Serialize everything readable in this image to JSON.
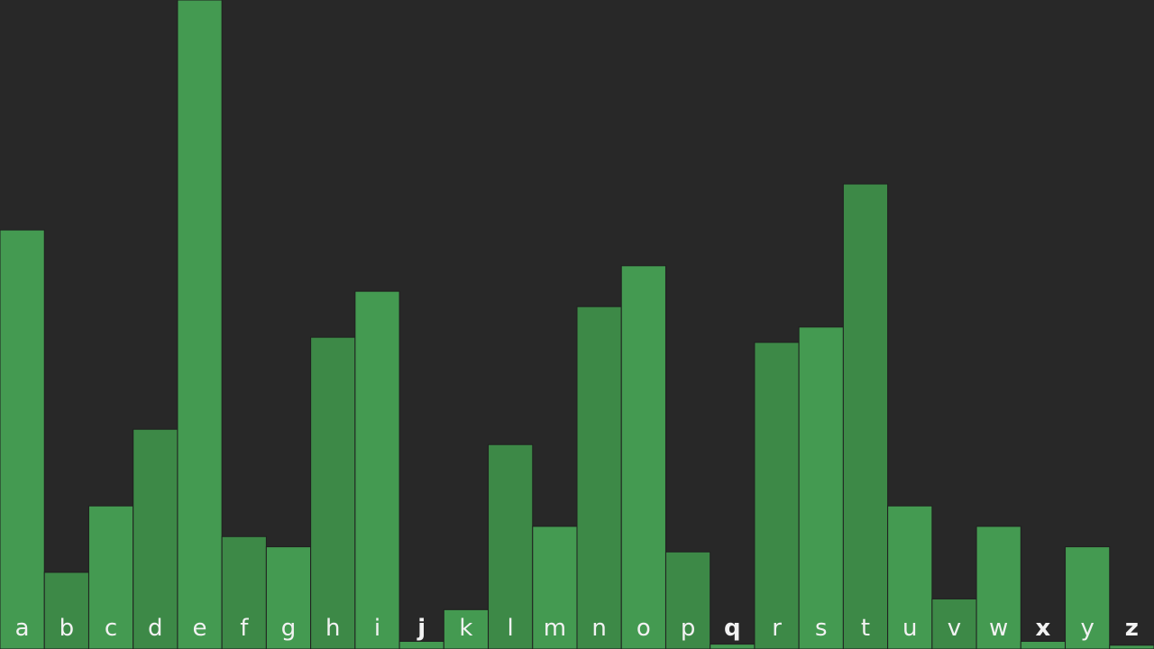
{
  "chart_data": {
    "type": "bar",
    "categories": [
      "a",
      "b",
      "c",
      "d",
      "e",
      "f",
      "g",
      "h",
      "i",
      "j",
      "k",
      "l",
      "m",
      "n",
      "o",
      "p",
      "q",
      "r",
      "s",
      "t",
      "u",
      "v",
      "w",
      "x",
      "y",
      "z"
    ],
    "values": [
      8.2,
      1.5,
      2.8,
      4.3,
      12.7,
      2.2,
      2.0,
      6.1,
      7.0,
      0.15,
      0.77,
      4.0,
      2.4,
      6.7,
      7.5,
      1.9,
      0.095,
      6.0,
      6.3,
      9.1,
      2.8,
      0.98,
      2.4,
      0.15,
      2.0,
      0.074
    ],
    "ylim": [
      0,
      12.7
    ],
    "grid": false,
    "colors": {
      "background": "#282828",
      "bar_light": "#449a51",
      "bar_dark": "#3d8947",
      "tick_label": "#f2f2f2"
    }
  }
}
